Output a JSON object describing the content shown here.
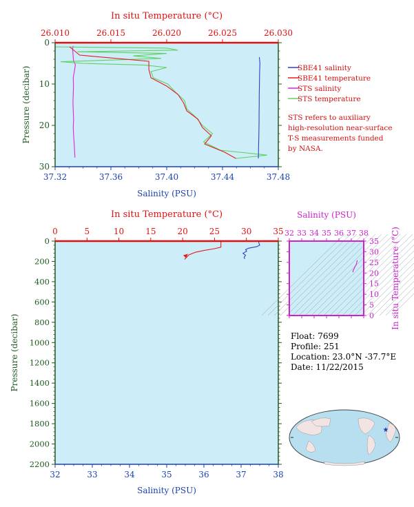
{
  "colors": {
    "salinity_axis": "#1a3fb5",
    "temperature_axis": "#e01010",
    "pressure_axis": "#1e5a1e",
    "ts_axis": "#cc22cc",
    "plot_bg": "#cdeef8",
    "sbe_salinity": "#2a3fd0",
    "sbe_temperature": "#e51c1c",
    "sts_salinity": "#e020e0",
    "sts_temperature": "#60d060"
  },
  "chart_data": [
    {
      "id": "near-surface",
      "type": "line",
      "top_axis_title": "In situ Temperature (°C)",
      "top_ticks": [
        "26.010",
        "26.015",
        "26.020",
        "26.025",
        "26.030"
      ],
      "top_ticks_values": [
        26.01,
        26.015,
        26.02,
        26.025,
        26.03
      ],
      "xlabel": "Salinity (PSU)",
      "x_ticks": [
        "37.32",
        "37.36",
        "37.40",
        "37.44",
        "37.48"
      ],
      "x_ticks_values": [
        37.32,
        37.36,
        37.4,
        37.44,
        37.48
      ],
      "ylabel": "Pressure (decibar)",
      "y_ticks": [
        "0",
        "10",
        "20",
        "30"
      ],
      "y_ticks_values": [
        0,
        10,
        20,
        30
      ],
      "xlim": [
        37.32,
        37.48
      ],
      "temp_lim": [
        26.01,
        26.03
      ],
      "ylim": [
        0,
        30
      ],
      "legend": [
        "SBE41 salinity",
        "SBE41 temperature",
        "STS salinity",
        "STS temperature"
      ],
      "note": [
        "STS refers to auxiliary",
        "high-resolution near-surface",
        "T-S measurements funded",
        "by NASA."
      ],
      "series": [
        {
          "name": "SBE41 salinity",
          "axis": "salinity",
          "points": [
            [
              37.4664,
              3.5
            ],
            [
              37.4668,
              5
            ],
            [
              37.4666,
              7
            ],
            [
              37.4665,
              9
            ],
            [
              37.4664,
              11
            ],
            [
              37.4663,
              13
            ],
            [
              37.4663,
              15
            ],
            [
              37.4662,
              17
            ],
            [
              37.4662,
              19
            ],
            [
              37.4661,
              21
            ],
            [
              37.466,
              23
            ],
            [
              37.4659,
              25
            ],
            [
              37.4658,
              27
            ],
            [
              37.4657,
              28
            ]
          ]
        },
        {
          "name": "SBE41 temperature",
          "axis": "temperature",
          "points": [
            [
              26.0113,
              1.0
            ],
            [
              26.0122,
              3.0
            ],
            [
              26.0184,
              4.5
            ],
            [
              26.0184,
              6.5
            ],
            [
              26.0186,
              8.5
            ],
            [
              26.02,
              10.5
            ],
            [
              26.021,
              12.5
            ],
            [
              26.0215,
              14.5
            ],
            [
              26.0218,
              16.5
            ],
            [
              26.0228,
              18.5
            ],
            [
              26.0232,
              20.5
            ],
            [
              26.024,
              22.5
            ],
            [
              26.0234,
              24.5
            ],
            [
              26.0252,
              26.5
            ],
            [
              26.0262,
              28.0
            ]
          ]
        },
        {
          "name": "STS salinity",
          "axis": "salinity",
          "points": [
            [
              37.333,
              0.8
            ],
            [
              37.3325,
              1.5
            ],
            [
              37.3328,
              2.5
            ],
            [
              37.333,
              3.5
            ],
            [
              37.3333,
              4.5
            ],
            [
              37.3345,
              5.3
            ],
            [
              37.334,
              6.5
            ],
            [
              37.333,
              8.5
            ],
            [
              37.3332,
              10.5
            ],
            [
              37.333,
              12.5
            ],
            [
              37.3328,
              14.5
            ],
            [
              37.333,
              16.5
            ],
            [
              37.3333,
              18.5
            ],
            [
              37.333,
              20.5
            ],
            [
              37.3333,
              22.5
            ],
            [
              37.3337,
              24.5
            ],
            [
              37.334,
              26.5
            ],
            [
              37.3342,
              27.8
            ]
          ]
        },
        {
          "name": "STS temperature",
          "axis": "temperature",
          "points": [
            [
              26.01,
              1.0
            ],
            [
              26.02,
              1.3
            ],
            [
              26.021,
              1.8
            ],
            [
              26.012,
              2.2
            ],
            [
              26.02,
              2.6
            ],
            [
              26.017,
              3.2
            ],
            [
              26.0195,
              3.8
            ],
            [
              26.0105,
              4.6
            ],
            [
              26.0125,
              5.0
            ],
            [
              26.018,
              5.4
            ],
            [
              26.02,
              6.0
            ],
            [
              26.0186,
              7.0
            ],
            [
              26.0188,
              8.5
            ],
            [
              26.0201,
              10.0
            ],
            [
              26.0208,
              12.0
            ],
            [
              26.0216,
              14.0
            ],
            [
              26.0218,
              16.0
            ],
            [
              26.0226,
              18.0
            ],
            [
              26.0232,
              20.0
            ],
            [
              26.0241,
              22.0
            ],
            [
              26.0233,
              24.0
            ],
            [
              26.0248,
              26.0
            ],
            [
              26.029,
              27.2
            ],
            [
              26.0262,
              28.0
            ]
          ]
        }
      ]
    },
    {
      "id": "full-profile",
      "type": "line",
      "top_axis_title": "In situ Temperature (°C)",
      "top_ticks": [
        "0",
        "5",
        "10",
        "15",
        "20",
        "25",
        "30",
        "35"
      ],
      "top_ticks_values": [
        0,
        5,
        10,
        15,
        20,
        25,
        30,
        35
      ],
      "xlabel": "Salinity (PSU)",
      "x_ticks": [
        "32",
        "33",
        "34",
        "35",
        "36",
        "37",
        "38"
      ],
      "x_ticks_values": [
        32,
        33,
        34,
        35,
        36,
        37,
        38
      ],
      "ylabel": "Pressure (decibar)",
      "y_ticks": [
        "0",
        "200",
        "400",
        "600",
        "800",
        "1000",
        "1200",
        "1400",
        "1600",
        "1800",
        "2000",
        "2200"
      ],
      "y_ticks_values": [
        0,
        200,
        400,
        600,
        800,
        1000,
        1200,
        1400,
        1600,
        1800,
        2000,
        2200
      ],
      "xlim": [
        32,
        38
      ],
      "temp_lim": [
        0,
        35
      ],
      "ylim": [
        0,
        2200
      ],
      "series": [
        {
          "name": "salinity",
          "axis": "salinity",
          "points": [
            [
              37.47,
              5
            ],
            [
              37.48,
              20
            ],
            [
              37.5,
              40
            ],
            [
              37.42,
              55
            ],
            [
              37.2,
              70
            ],
            [
              37.12,
              85
            ],
            [
              37.15,
              100
            ],
            [
              37.05,
              120
            ],
            [
              37.12,
              140
            ],
            [
              37.08,
              160
            ],
            [
              37.1,
              175
            ]
          ]
        },
        {
          "name": "temperature",
          "axis": "temperature",
          "points": [
            [
              26.0,
              5
            ],
            [
              26.0,
              60
            ],
            [
              25.0,
              75
            ],
            [
              23.5,
              90
            ],
            [
              22.0,
              110
            ],
            [
              21.0,
              135
            ],
            [
              20.6,
              160
            ],
            [
              20.3,
              180
            ]
          ]
        }
      ]
    },
    {
      "id": "ts-diagram",
      "type": "scatter",
      "title": "Salinity (PSU)",
      "x_ticks": [
        "32",
        "33",
        "34",
        "35",
        "36",
        "37",
        "38"
      ],
      "x_ticks_values": [
        32,
        33,
        34,
        35,
        36,
        37,
        38
      ],
      "y_ticks": [
        "0",
        "5",
        "10",
        "15",
        "20",
        "25",
        "30",
        "35"
      ],
      "y_ticks_values": [
        0,
        5,
        10,
        15,
        20,
        25,
        30,
        35
      ],
      "ylabel": "In situ Temperature (°C)",
      "xlim": [
        32,
        38
      ],
      "ylim": [
        0,
        35
      ],
      "series": [
        {
          "name": "profile",
          "points": [
            [
              37.48,
              26.0
            ],
            [
              37.45,
              25.2
            ],
            [
              37.4,
              24.0
            ],
            [
              37.3,
              23.0
            ],
            [
              37.22,
              22.0
            ],
            [
              37.15,
              21.2
            ],
            [
              37.12,
              20.4
            ]
          ]
        }
      ]
    }
  ],
  "float_info": {
    "float": "Float:  7699",
    "profile": "Profile:  251",
    "location": "Location:  23.0°N  -37.7°E",
    "date": "Date:  11/22/2015"
  }
}
